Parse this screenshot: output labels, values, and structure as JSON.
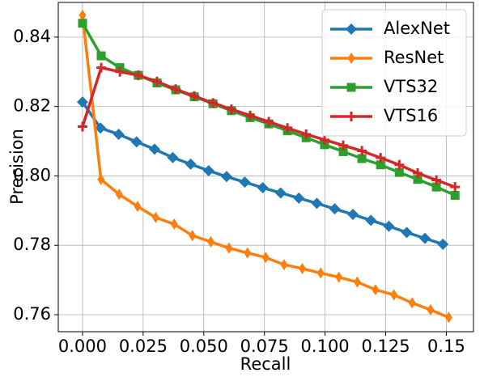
{
  "chart_data": {
    "type": "line",
    "x_label": "Recall",
    "y_label": "Precision",
    "xlim": [
      -0.01,
      0.1612
    ],
    "ylim": [
      0.7551,
      0.85
    ],
    "xticks": [
      {
        "value": 0,
        "label": "0.000"
      },
      {
        "value": 0.025,
        "label": "0.025"
      },
      {
        "value": 0.05,
        "label": "0.050"
      },
      {
        "value": 0.075,
        "label": "0.075"
      },
      {
        "value": 0.1,
        "label": "0.100"
      },
      {
        "value": 0.125,
        "label": "0.125"
      },
      0.15
    ],
    "yticks": [
      0.76,
      0.78,
      {
        "value": 0.8,
        "label": "0.80"
      },
      0.82,
      0.84
    ],
    "grid": true,
    "legend": "upper right",
    "series": [
      {
        "name": "AlexNet",
        "color": "#1f77b4",
        "marker": "diamond",
        "x": [
          0,
          0.0074,
          0.0149,
          0.0223,
          0.0297,
          0.0372,
          0.0446,
          0.052,
          0.0594,
          0.0669,
          0.0743,
          0.0817,
          0.0892,
          0.0966,
          0.104,
          0.1115,
          0.1189,
          0.1263,
          0.1337,
          0.1412,
          0.1486
        ],
        "values": [
          0.8213,
          0.8138,
          0.812,
          0.8098,
          0.8077,
          0.8053,
          0.8034,
          0.8015,
          0.7998,
          0.7982,
          0.7966,
          0.7951,
          0.7936,
          0.7921,
          0.7905,
          0.7889,
          0.7872,
          0.7855,
          0.7837,
          0.782,
          0.7803
        ]
      },
      {
        "name": "ResNet",
        "color": "#ff7f0e",
        "marker": "thin_diamond",
        "x": [
          0,
          0.0076,
          0.0151,
          0.0227,
          0.0302,
          0.0378,
          0.0453,
          0.0529,
          0.0604,
          0.068,
          0.0755,
          0.0831,
          0.0906,
          0.0982,
          0.1057,
          0.1133,
          0.1208,
          0.1284,
          0.1359,
          0.1435,
          0.151
        ],
        "values": [
          0.8463,
          0.799,
          0.7947,
          0.7912,
          0.788,
          0.7861,
          0.7828,
          0.781,
          0.7792,
          0.7778,
          0.7765,
          0.7744,
          0.7733,
          0.772,
          0.7708,
          0.7694,
          0.7672,
          0.7657,
          0.7634,
          0.7614,
          0.7592
        ]
      },
      {
        "name": "VTS32",
        "color": "#2ca02c",
        "marker": "square",
        "x": [
          0,
          0.0077,
          0.0154,
          0.023,
          0.0307,
          0.0384,
          0.0461,
          0.0538,
          0.0614,
          0.0691,
          0.0768,
          0.0845,
          0.0922,
          0.0998,
          0.1075,
          0.1152,
          0.1229,
          0.1306,
          0.1382,
          0.1459,
          0.1536
        ],
        "values": [
          0.844,
          0.8346,
          0.8312,
          0.829,
          0.8268,
          0.8248,
          0.8228,
          0.8208,
          0.8188,
          0.8168,
          0.815,
          0.813,
          0.811,
          0.809,
          0.807,
          0.805,
          0.8032,
          0.801,
          0.799,
          0.7968,
          0.7944
        ]
      },
      {
        "name": "VTS16",
        "color": "#d62728",
        "marker": "plus",
        "x": [
          0,
          0.0077,
          0.0154,
          0.023,
          0.0307,
          0.0384,
          0.0461,
          0.0538,
          0.0614,
          0.0691,
          0.0768,
          0.0845,
          0.0922,
          0.0998,
          0.1075,
          0.1152,
          0.1229,
          0.1306,
          0.1382,
          0.1459,
          0.1536
        ],
        "values": [
          0.8142,
          0.8312,
          0.83,
          0.829,
          0.8272,
          0.825,
          0.823,
          0.821,
          0.8192,
          0.8174,
          0.8156,
          0.8138,
          0.812,
          0.8104,
          0.8088,
          0.8072,
          0.8052,
          0.8032,
          0.8008,
          0.7988,
          0.7968
        ]
      }
    ]
  }
}
